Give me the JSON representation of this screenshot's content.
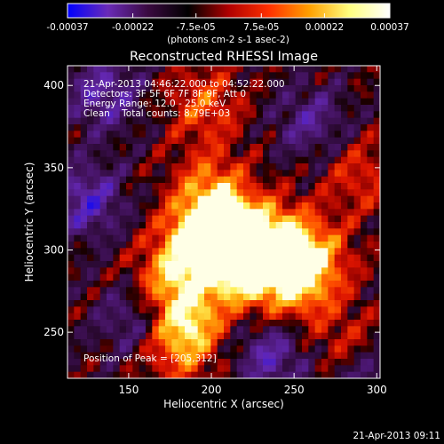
{
  "chart_data": {
    "type": "heatmap",
    "title": "Reconstructed RHESSI Image",
    "xlabel": "Heliocentric X (arcsec)",
    "ylabel": "Heliocentric Y (arcsec)",
    "xlim": [
      113,
      302
    ],
    "ylim": [
      222,
      412
    ],
    "xticks": [
      150,
      200,
      250,
      300
    ],
    "yticks": [
      250,
      300,
      350,
      400
    ],
    "colorbar": {
      "ticks": [
        "-0.00037",
        "-0.00022",
        "-7.5e-05",
        "7.5e-05",
        "0.00022",
        "0.00037"
      ],
      "tick_values": [
        -0.00037,
        -0.00022,
        -7.5e-05,
        7.5e-05,
        0.00022,
        0.00037
      ],
      "range": [
        -0.00037,
        0.00037
      ],
      "label": "(photons cm-2 s-1 asec-2)",
      "colors": [
        "#0000ff",
        "#6a2bb8",
        "#3a0a40",
        "#000000",
        "#b00000",
        "#ff3000",
        "#ffa000",
        "#ffff80",
        "#ffffff"
      ]
    },
    "annotations": {
      "time": "21-Apr-2013 04:46:22.000 to 04:52:22.000",
      "detectors": "Detectors: 3F 5F 6F 7F 8F 9F, Att 0",
      "energy": "Energy Range: 12.0 - 25.0 keV",
      "clean": "Clean    Total counts: 8.79E+03",
      "peak": "Position of Peak = [205,312]"
    },
    "sources": [
      {
        "x": 205,
        "y": 312,
        "value": 0.00037
      },
      {
        "x": 218,
        "y": 300,
        "value": 0.0003
      },
      {
        "x": 190,
        "y": 305,
        "value": 0.00024
      },
      {
        "x": 240,
        "y": 306,
        "value": 0.00026
      },
      {
        "x": 252,
        "y": 278,
        "value": 0.00024
      },
      {
        "x": 262,
        "y": 296,
        "value": 0.00022
      },
      {
        "x": 185,
        "y": 258,
        "value": 0.00026
      },
      {
        "x": 174,
        "y": 282,
        "value": 0.00022
      },
      {
        "x": 222,
        "y": 284,
        "value": 0.00022
      },
      {
        "x": 200,
        "y": 338,
        "value": 0.0002
      },
      {
        "x": 180,
        "y": 240,
        "value": 0.00018
      },
      {
        "x": 196,
        "y": 388,
        "value": 0.00018
      },
      {
        "x": 282,
        "y": 240,
        "value": 0.00016
      },
      {
        "x": 290,
        "y": 345,
        "value": 0.00014
      },
      {
        "x": 125,
        "y": 330,
        "value": -0.00022
      },
      {
        "x": 135,
        "y": 395,
        "value": -0.0002
      },
      {
        "x": 260,
        "y": 378,
        "value": -0.00016
      },
      {
        "x": 155,
        "y": 258,
        "value": -0.00018
      },
      {
        "x": 236,
        "y": 236,
        "value": -0.0002
      },
      {
        "x": 292,
        "y": 225,
        "value": -0.00018
      }
    ]
  },
  "footer": {
    "timestamp": "21-Apr-2013 09:11"
  }
}
